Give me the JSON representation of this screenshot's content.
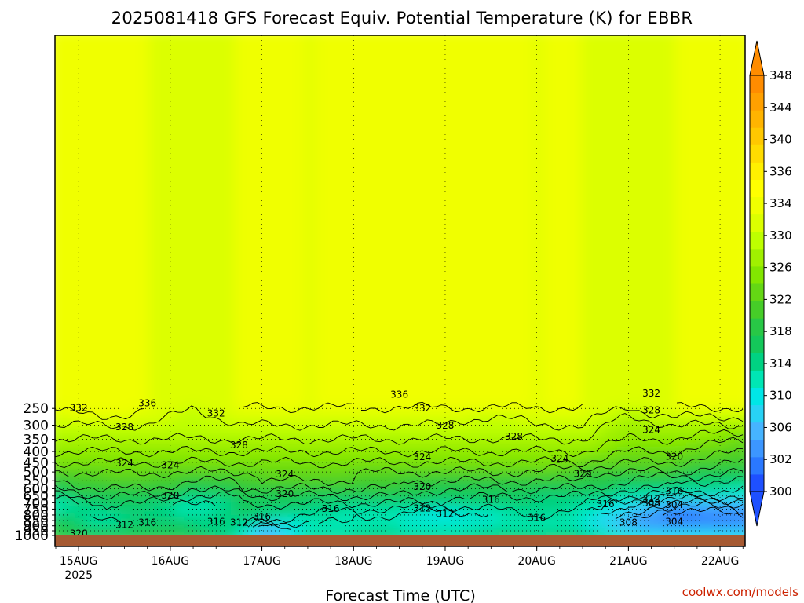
{
  "chart_data": {
    "type": "heatmap",
    "title": "2025081418 GFS Forecast Equiv. Potential Temperature (K) for EBBR",
    "xlabel": "Forecast Time (UTC)",
    "ylabel": "",
    "y_scale": "log-pressure, inverted",
    "ylim": [
      1000,
      200
    ],
    "y_ticks": [
      250,
      300,
      350,
      400,
      450,
      500,
      550,
      600,
      650,
      700,
      750,
      800,
      850,
      900,
      950,
      1000
    ],
    "x_ticks": [
      {
        "label": "15AUG",
        "sublabel": "2025",
        "datetime": "2025-08-15T00"
      },
      {
        "label": "16AUG",
        "sublabel": "",
        "datetime": "2025-08-16T00"
      },
      {
        "label": "17AUG",
        "sublabel": "",
        "datetime": "2025-08-17T00"
      },
      {
        "label": "18AUG",
        "sublabel": "",
        "datetime": "2025-08-18T00"
      },
      {
        "label": "19AUG",
        "sublabel": "",
        "datetime": "2025-08-19T00"
      },
      {
        "label": "20AUG",
        "sublabel": "",
        "datetime": "2025-08-20T00"
      },
      {
        "label": "21AUG",
        "sublabel": "",
        "datetime": "2025-08-21T00"
      },
      {
        "label": "22AUG",
        "sublabel": "",
        "datetime": "2025-08-22T00"
      }
    ],
    "xlim": [
      "2025-08-14T18",
      "2025-08-22T06"
    ],
    "grid": true,
    "colorbar": {
      "levels": [
        300,
        302,
        304,
        306,
        308,
        310,
        312,
        314,
        316,
        318,
        320,
        322,
        324,
        326,
        328,
        330,
        332,
        334,
        336,
        338,
        340,
        342,
        344,
        346,
        348
      ],
      "tick_labels": [
        "300",
        "302",
        "306",
        "310",
        "314",
        "318",
        "322",
        "326",
        "330",
        "334",
        "336",
        "340",
        "344",
        "348"
      ],
      "extend": "both",
      "placement": "right"
    },
    "series": [
      {
        "pressure": 250,
        "values": [
          332,
          334,
          332,
          330,
          332,
          332,
          332,
          332,
          332,
          332,
          332,
          332,
          332,
          330,
          332,
          332
        ]
      },
      {
        "pressure": 300,
        "values": [
          330,
          330,
          330,
          328,
          330,
          330,
          330,
          330,
          330,
          330,
          328,
          330,
          330,
          326,
          328,
          328
        ]
      },
      {
        "pressure": 350,
        "values": [
          328,
          328,
          328,
          328,
          328,
          328,
          328,
          328,
          328,
          328,
          328,
          328,
          328,
          326,
          326,
          324
        ]
      },
      {
        "pressure": 400,
        "values": [
          326,
          326,
          326,
          326,
          326,
          326,
          326,
          326,
          326,
          326,
          326,
          326,
          326,
          324,
          324,
          322
        ]
      },
      {
        "pressure": 450,
        "values": [
          324,
          324,
          324,
          324,
          324,
          324,
          324,
          324,
          324,
          324,
          324,
          324,
          324,
          322,
          322,
          320
        ]
      },
      {
        "pressure": 500,
        "values": [
          322,
          322,
          322,
          322,
          322,
          322,
          324,
          322,
          322,
          322,
          322,
          322,
          320,
          320,
          320,
          318
        ]
      },
      {
        "pressure": 550,
        "values": [
          320,
          322,
          322,
          320,
          320,
          322,
          322,
          322,
          320,
          320,
          320,
          320,
          320,
          318,
          316,
          316
        ]
      },
      {
        "pressure": 600,
        "values": [
          318,
          320,
          320,
          318,
          320,
          320,
          320,
          320,
          320,
          318,
          318,
          318,
          318,
          316,
          316,
          314
        ]
      },
      {
        "pressure": 650,
        "values": [
          316,
          318,
          318,
          316,
          316,
          318,
          318,
          318,
          318,
          316,
          316,
          316,
          316,
          314,
          312,
          312
        ]
      },
      {
        "pressure": 700,
        "values": [
          312,
          316,
          316,
          312,
          316,
          316,
          316,
          316,
          316,
          316,
          316,
          316,
          314,
          310,
          308,
          308
        ]
      },
      {
        "pressure": 750,
        "values": [
          312,
          316,
          316,
          312,
          316,
          316,
          316,
          314,
          314,
          312,
          314,
          316,
          314,
          310,
          304,
          306
        ]
      },
      {
        "pressure": 800,
        "values": [
          316,
          314,
          316,
          314,
          316,
          316,
          314,
          312,
          312,
          310,
          312,
          314,
          312,
          308,
          302,
          304
        ]
      },
      {
        "pressure": 850,
        "values": [
          318,
          312,
          316,
          314,
          316,
          314,
          312,
          312,
          312,
          310,
          312,
          314,
          312,
          306,
          304,
          304
        ]
      },
      {
        "pressure": 900,
        "values": [
          318,
          314,
          318,
          316,
          316,
          308,
          312,
          312,
          314,
          312,
          314,
          314,
          312,
          306,
          306,
          306
        ]
      },
      {
        "pressure": 950,
        "values": [
          320,
          316,
          318,
          316,
          314,
          306,
          312,
          314,
          314,
          312,
          314,
          316,
          314,
          310,
          308,
          308
        ]
      },
      {
        "pressure": 1000,
        "values": [
          320,
          318,
          318,
          318,
          314,
          306,
          314,
          314,
          314,
          314,
          316,
          316,
          316,
          312,
          310,
          310
        ]
      }
    ],
    "x_values": [
      "2025-08-14T18",
      "2025-08-15T06",
      "2025-08-15T18",
      "2025-08-16T06",
      "2025-08-16T18",
      "2025-08-17T00",
      "2025-08-17T12",
      "2025-08-18T00",
      "2025-08-18T12",
      "2025-08-19T00",
      "2025-08-19T12",
      "2025-08-20T00",
      "2025-08-20T12",
      "2025-08-21T00",
      "2025-08-21T12",
      "2025-08-22T06"
    ],
    "contour_labels": [
      {
        "text": "336",
        "time": "2025-08-18T12",
        "pressure": 215
      },
      {
        "text": "336",
        "time": "2025-08-15T18",
        "pressure": 236
      },
      {
        "text": "332",
        "time": "2025-08-15T00",
        "pressure": 248
      },
      {
        "text": "332",
        "time": "2025-08-16T12",
        "pressure": 264
      },
      {
        "text": "332",
        "time": "2025-08-18T18",
        "pressure": 249
      },
      {
        "text": "332",
        "time": "2025-08-21T06",
        "pressure": 212
      },
      {
        "text": "328",
        "time": "2025-08-21T06",
        "pressure": 255
      },
      {
        "text": "328",
        "time": "2025-08-15T12",
        "pressure": 307
      },
      {
        "text": "328",
        "time": "2025-08-19T00",
        "pressure": 301
      },
      {
        "text": "328",
        "time": "2025-08-19T18",
        "pressure": 340
      },
      {
        "text": "328",
        "time": "2025-08-16T18",
        "pressure": 374
      },
      {
        "text": "324",
        "time": "2025-08-21T06",
        "pressure": 316
      },
      {
        "text": "324",
        "time": "2025-08-15T12",
        "pressure": 455
      },
      {
        "text": "324",
        "time": "2025-08-16T00",
        "pressure": 465
      },
      {
        "text": "324",
        "time": "2025-08-17T06",
        "pressure": 512
      },
      {
        "text": "324",
        "time": "2025-08-18T18",
        "pressure": 425
      },
      {
        "text": "324",
        "time": "2025-08-20T06",
        "pressure": 432
      },
      {
        "text": "320",
        "time": "2025-08-21T12",
        "pressure": 423
      },
      {
        "text": "320",
        "time": "2025-08-20T12",
        "pressure": 510
      },
      {
        "text": "320",
        "time": "2025-08-18T18",
        "pressure": 589
      },
      {
        "text": "320",
        "time": "2025-08-17T06",
        "pressure": 635
      },
      {
        "text": "320",
        "time": "2025-08-16T00",
        "pressure": 645
      },
      {
        "text": "316",
        "time": "2025-08-19T12",
        "pressure": 678
      },
      {
        "text": "316",
        "time": "2025-08-20T18",
        "pressure": 711
      },
      {
        "text": "316",
        "time": "2025-08-21T12",
        "pressure": 617
      },
      {
        "text": "316",
        "time": "2025-08-17T18",
        "pressure": 748
      },
      {
        "text": "316",
        "time": "2025-08-17T00",
        "pressure": 815
      },
      {
        "text": "316",
        "time": "2025-08-16T12",
        "pressure": 862
      },
      {
        "text": "316",
        "time": "2025-08-15T18",
        "pressure": 870
      },
      {
        "text": "316",
        "time": "2025-08-20T00",
        "pressure": 825
      },
      {
        "text": "312",
        "time": "2025-08-16T18",
        "pressure": 870
      },
      {
        "text": "312",
        "time": "2025-08-15T12",
        "pressure": 890
      },
      {
        "text": "312",
        "time": "2025-08-18T18",
        "pressure": 745
      },
      {
        "text": "312",
        "time": "2025-08-19T00",
        "pressure": 790
      },
      {
        "text": "312",
        "time": "2025-08-21T06",
        "pressure": 668
      },
      {
        "text": "308",
        "time": "2025-08-21T06",
        "pressure": 705
      },
      {
        "text": "308",
        "time": "2025-08-21T00",
        "pressure": 870
      },
      {
        "text": "304",
        "time": "2025-08-21T12",
        "pressure": 715
      },
      {
        "text": "304",
        "time": "2025-08-21T12",
        "pressure": 862
      },
      {
        "text": "320",
        "time": "2025-08-15T00",
        "pressure": 978
      }
    ]
  },
  "colors": {
    "ground": "#a65a32",
    "frame": "#000000",
    "credit": "#cc2200",
    "scale": [
      "#1e50ff",
      "#2a78ff",
      "#3c96ff",
      "#46b4ff",
      "#28d2f5",
      "#00e6e6",
      "#00e6b4",
      "#00d282",
      "#14c85a",
      "#28c846",
      "#46cd28",
      "#64d714",
      "#82e600",
      "#a0f000",
      "#beff00",
      "#dcff00",
      "#f0ff00",
      "#ffff00",
      "#fff000",
      "#ffdc00",
      "#ffc800",
      "#ffb400",
      "#ffa000",
      "#ff8c00"
    ]
  },
  "credit": "coolwx.com/models"
}
